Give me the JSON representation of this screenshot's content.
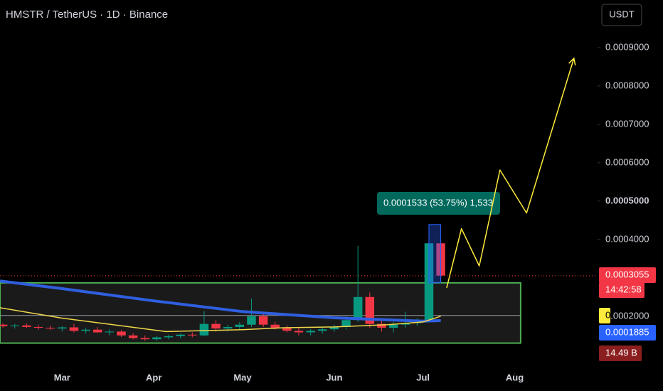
{
  "chart_data": {
    "type": "candlestick",
    "title": "HMSTR / TetherUS · 1D · Binance",
    "currency": "USDT",
    "xlim": [
      -21,
      181
    ],
    "xticks": [
      {
        "value": 0,
        "label": "Mar"
      },
      {
        "value": 31,
        "label": "Apr"
      },
      {
        "value": 61,
        "label": "May"
      },
      {
        "value": 92,
        "label": "Jun"
      },
      {
        "value": 122,
        "label": "Jul"
      },
      {
        "value": 153,
        "label": "Aug"
      }
    ],
    "ylim": [
      7e-05,
      0.001024
    ],
    "yticks": [
      {
        "value": 0.0002,
        "label": "0.0002000"
      },
      {
        "value": 0.0004,
        "label": "0.0004000"
      },
      {
        "value": 0.0005,
        "label": "0.0005000"
      },
      {
        "value": 0.0006,
        "label": "0.0006000"
      },
      {
        "value": 0.0007,
        "label": "0.0007000"
      },
      {
        "value": 0.0008,
        "label": "0.0008000"
      },
      {
        "value": 0.0009,
        "label": "0.0009000"
      }
    ],
    "up_color": "#089981",
    "down_color": "#f23645",
    "candles": {
      "x": [
        -20,
        -16,
        -12,
        -8,
        -4,
        0,
        4,
        8,
        12,
        16,
        20,
        24,
        28,
        32,
        36,
        40,
        44,
        48,
        52,
        56,
        60,
        64,
        68,
        72,
        76,
        80,
        84,
        88,
        92,
        96,
        100,
        104,
        108,
        112,
        116,
        120,
        124,
        128
      ],
      "open": [
        0.000178,
        0.000174,
        0.000176,
        0.000172,
        0.00017,
        0.000168,
        0.000171,
        0.000162,
        0.000165,
        0.000158,
        0.00016,
        0.00015,
        0.000143,
        0.00014,
        0.000145,
        0.000148,
        0.000152,
        0.00015,
        0.00018,
        0.000168,
        0.000172,
        0.000178,
        0.0002,
        0.000178,
        0.00017,
        0.000162,
        0.000158,
        0.000162,
        0.000166,
        0.000172,
        0.00019,
        0.00025,
        0.00018,
        0.00017,
        0.000178,
        0.000182,
        0.00019,
        0.00039
      ],
      "high": [
        0.000182,
        0.00018,
        0.000181,
        0.000178,
        0.000176,
        0.000174,
        0.00018,
        0.00017,
        0.000172,
        0.000166,
        0.000164,
        0.000156,
        0.00015,
        0.000148,
        0.000152,
        0.000155,
        0.000158,
        0.000213,
        0.00019,
        0.000178,
        0.000185,
        0.000246,
        0.00021,
        0.000186,
        0.000176,
        0.00017,
        0.000166,
        0.00017,
        0.000178,
        0.0002,
        0.000383,
        0.000262,
        0.00019,
        0.000185,
        0.000212,
        0.000195,
        0.000439,
        0.0004
      ],
      "low": [
        0.00017,
        0.000168,
        0.00017,
        0.000165,
        0.000164,
        0.00016,
        0.000158,
        0.000155,
        0.000156,
        0.00015,
        0.000146,
        0.00014,
        0.000136,
        0.000136,
        0.00014,
        0.000142,
        0.000145,
        0.000148,
        0.00016,
        0.00016,
        0.000165,
        0.000172,
        0.000172,
        0.000165,
        0.000158,
        0.00015,
        0.00015,
        0.000155,
        0.00016,
        0.000165,
        0.000185,
        0.00017,
        0.00016,
        0.000158,
        0.00017,
        0.000175,
        0.000185,
        0.00029
      ],
      "close": [
        0.000174,
        0.000176,
        0.000172,
        0.00017,
        0.000168,
        0.000171,
        0.000162,
        0.000165,
        0.000158,
        0.00016,
        0.00015,
        0.000143,
        0.00014,
        0.000145,
        0.000148,
        0.000152,
        0.00015,
        0.00018,
        0.000168,
        0.000172,
        0.000178,
        0.0002,
        0.000178,
        0.00017,
        0.000162,
        0.000158,
        0.000162,
        0.000166,
        0.000172,
        0.00019,
        0.00025,
        0.00018,
        0.00017,
        0.000178,
        0.000182,
        0.00019,
        0.00039,
        0.000306
      ]
    },
    "ma_lines": [
      {
        "color": "#2f5fe0",
        "width": 4,
        "x": [
          -21,
          0,
          31,
          61,
          92,
          122,
          128
        ],
        "values": [
          0.000292,
          0.000272,
          0.00024,
          0.000212,
          0.000196,
          0.000187,
          0.0001885
        ]
      },
      {
        "color": "#f0d84a",
        "width": 1.5,
        "x": [
          -21,
          0,
          20,
          35,
          61,
          75,
          92,
          110,
          122,
          128
        ],
        "values": [
          0.000222,
          0.000195,
          0.000175,
          0.00016,
          0.000165,
          0.00017,
          0.000172,
          0.000178,
          0.000185,
          0.0002
        ]
      }
    ],
    "zone": {
      "x": [
        -21,
        155
      ],
      "y": [
        0.00013,
        0.000287
      ],
      "color": "#4caf50"
    },
    "level_line": {
      "value": 0.000202,
      "color": "#9598a1"
    },
    "last_price_line": {
      "value": 0.0003055,
      "color": "#f23645"
    },
    "projection": {
      "color": "#ffeb3b",
      "x": [
        130,
        135,
        141,
        148,
        157,
        173
      ],
      "values": [
        0.000274,
        0.000428,
        0.000331,
        0.000581,
        0.000469,
        0.000872
      ]
    },
    "measure": {
      "label": "0.0001533 (53.75%) 1,533",
      "x": [
        124,
        128
      ],
      "y": [
        0.000287,
        0.000439
      ],
      "color": "#2962ff"
    },
    "tags": [
      {
        "label": "0.0003055",
        "color": "#f23645"
      },
      {
        "label": "14:42:58",
        "color": "#f23645"
      },
      {
        "label": "0",
        "color": "#ffeb3b"
      },
      {
        "label": "0.0001885",
        "color": "#2962ff"
      },
      {
        "label": "14.49 B",
        "color": "#8b1e1e"
      }
    ]
  }
}
